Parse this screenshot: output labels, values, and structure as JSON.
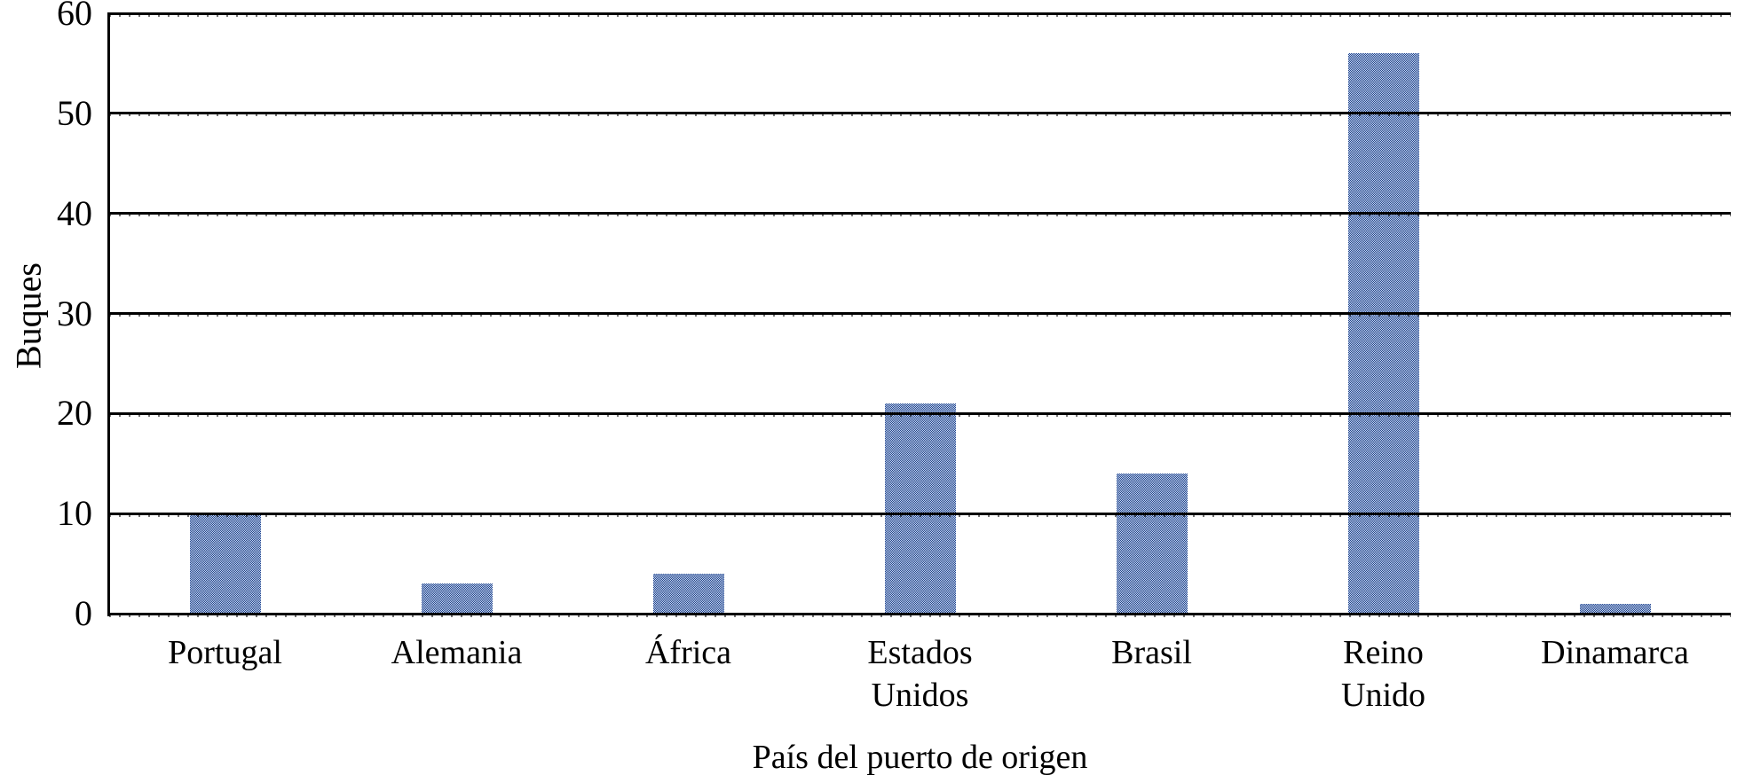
{
  "chart_data": {
    "type": "bar",
    "title": "",
    "xlabel": "País del puerto de origen",
    "ylabel": "Buques",
    "categories": [
      "Portugal",
      "Alemania",
      "África",
      "Estados Unidos",
      "Brasil",
      "Reino Unido",
      "Dinamarca"
    ],
    "category_lines": [
      [
        "Portugal"
      ],
      [
        "Alemania"
      ],
      [
        "África"
      ],
      [
        "Estados",
        "Unidos"
      ],
      [
        "Brasil"
      ],
      [
        "Reino",
        "Unido"
      ],
      [
        "Dinamarca"
      ]
    ],
    "values": [
      10,
      3,
      4,
      21,
      14,
      56,
      1
    ],
    "yticks": [
      0,
      10,
      20,
      30,
      40,
      50,
      60
    ],
    "ylim": [
      0,
      60
    ],
    "grid": true,
    "legend": "none",
    "bar_fill_dark": "#24408c",
    "bar_fill_light": "#c3d9ee",
    "axis_color": "#000000"
  }
}
